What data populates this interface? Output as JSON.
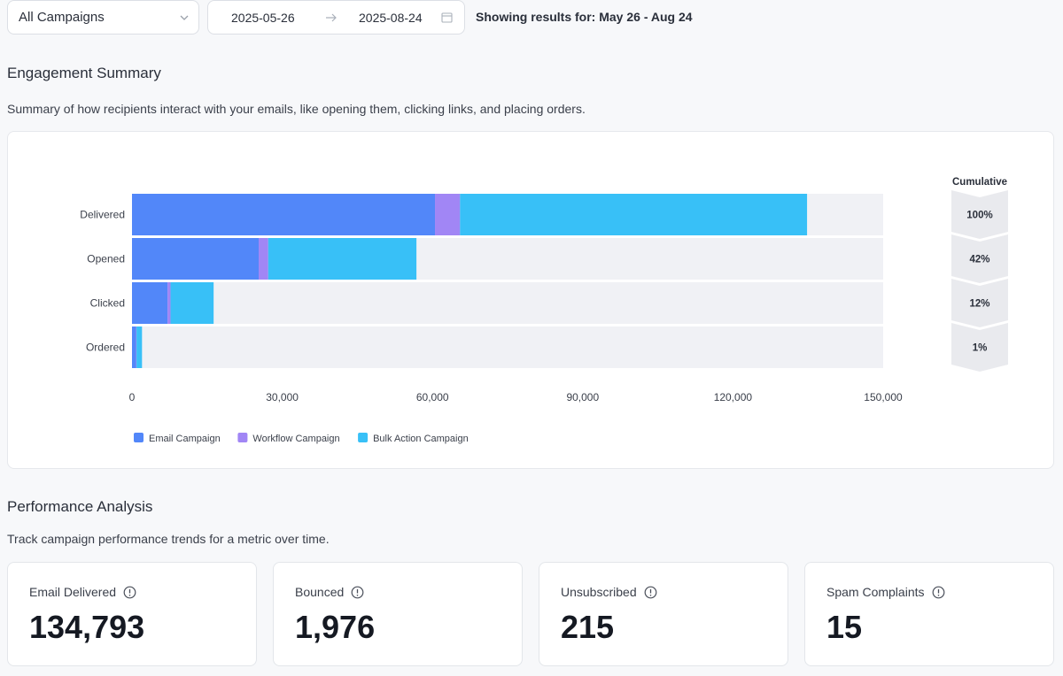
{
  "filters": {
    "campaign_select": "All Campaigns",
    "date_start": "2025-05-26",
    "date_end": "2025-08-24",
    "showing_text": "Showing results for: May 26 - Aug 24"
  },
  "engagement": {
    "title": "Engagement Summary",
    "description": "Summary of how recipients interact with your emails, like opening them, clicking links, and placing orders."
  },
  "chart_data": {
    "type": "bar",
    "orientation": "horizontal",
    "stacked": true,
    "categories": [
      "Delivered",
      "Opened",
      "Clicked",
      "Ordered"
    ],
    "series": [
      {
        "name": "Email Campaign",
        "color": "#5287f9",
        "values": [
          60500,
          25300,
          7100,
          800
        ]
      },
      {
        "name": "Workflow Campaign",
        "color": "#a186f5",
        "values": [
          5000,
          1900,
          600,
          100
        ]
      },
      {
        "name": "Bulk Action Campaign",
        "color": "#38c0f7",
        "values": [
          69300,
          29600,
          8600,
          1100
        ]
      }
    ],
    "xlim": [
      0,
      150000
    ],
    "xticks": [
      "0",
      "30,000",
      "60,000",
      "90,000",
      "120,000",
      "150,000"
    ],
    "xtick_values": [
      0,
      30000,
      60000,
      90000,
      120000,
      150000
    ],
    "legend_position": "bottom-left",
    "cumulative_label": "Cumulative",
    "cumulative": [
      "100%",
      "42%",
      "12%",
      "1%"
    ]
  },
  "performance": {
    "title": "Performance Analysis",
    "description": "Track campaign performance trends for a metric over time.",
    "kpis": [
      {
        "label": "Email Delivered",
        "value": "134,793"
      },
      {
        "label": "Bounced",
        "value": "1,976"
      },
      {
        "label": "Unsubscribed",
        "value": "215"
      },
      {
        "label": "Spam Complaints",
        "value": "15"
      }
    ]
  },
  "icons": {
    "select_chevron": "chevron-down-icon",
    "date_arrow": "arrow-right-icon",
    "date_calendar": "calendar-icon",
    "kpi_info": "info-icon"
  }
}
